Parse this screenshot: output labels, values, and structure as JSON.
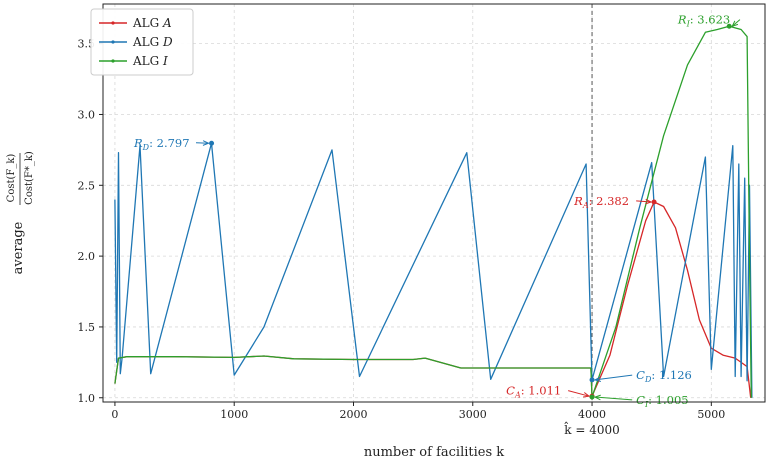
{
  "chart_data": {
    "type": "line",
    "xlabel": "number of facilities k",
    "ylabel_prefix": "average",
    "ylabel_fraction": {
      "numerator": "Cost(F_k)",
      "denominator": "Cost(F*_k)"
    },
    "xlim": [
      -100,
      5450
    ],
    "ylim": [
      0.97,
      3.78
    ],
    "x_ticks": [
      0,
      1000,
      2000,
      3000,
      4000,
      5000
    ],
    "x_tick_labels": [
      "0",
      "1000",
      "2000",
      "3000",
      "4000",
      "5000"
    ],
    "y_ticks": [
      1.0,
      1.5,
      2.0,
      2.5,
      3.0,
      3.5
    ],
    "y_tick_labels": [
      "1.0",
      "1.5",
      "2.0",
      "2.5",
      "3.0",
      "3.5"
    ],
    "grid": true,
    "legend_position": "top-left",
    "vline": {
      "x": 4000,
      "label": "k̂ = 4000"
    },
    "series": [
      {
        "name": "ALG A",
        "color": "#d62728",
        "points": [
          [
            0,
            1.1
          ],
          [
            30,
            1.28
          ],
          [
            100,
            1.29
          ],
          [
            500,
            1.29
          ],
          [
            1000,
            1.285
          ],
          [
            1250,
            1.295
          ],
          [
            1500,
            1.275
          ],
          [
            2000,
            1.27
          ],
          [
            2500,
            1.27
          ],
          [
            2600,
            1.28
          ],
          [
            2900,
            1.21
          ],
          [
            3500,
            1.21
          ],
          [
            3990,
            1.21
          ],
          [
            4000,
            1.011
          ],
          [
            4150,
            1.3
          ],
          [
            4300,
            1.8
          ],
          [
            4450,
            2.25
          ],
          [
            4520,
            2.382
          ],
          [
            4600,
            2.35
          ],
          [
            4700,
            2.2
          ],
          [
            4800,
            1.9
          ],
          [
            4900,
            1.55
          ],
          [
            5000,
            1.35
          ],
          [
            5100,
            1.3
          ],
          [
            5200,
            1.28
          ],
          [
            5300,
            1.22
          ],
          [
            5330,
            1.0
          ]
        ]
      },
      {
        "name": "ALG D",
        "color": "#1f77b4",
        "points": [
          [
            0,
            2.4
          ],
          [
            15,
            1.25
          ],
          [
            30,
            2.73
          ],
          [
            45,
            1.17
          ],
          [
            60,
            1.28
          ],
          [
            210,
            2.78
          ],
          [
            300,
            1.17
          ],
          [
            810,
            2.797
          ],
          [
            1000,
            1.16
          ],
          [
            1250,
            1.5
          ],
          [
            1820,
            2.75
          ],
          [
            2050,
            1.15
          ],
          [
            2950,
            2.73
          ],
          [
            3150,
            1.13
          ],
          [
            3950,
            2.65
          ],
          [
            4000,
            1.126
          ],
          [
            4500,
            2.66
          ],
          [
            4600,
            1.15
          ],
          [
            4950,
            2.7
          ],
          [
            5000,
            1.2
          ],
          [
            5180,
            2.78
          ],
          [
            5200,
            1.15
          ],
          [
            5230,
            2.65
          ],
          [
            5250,
            1.15
          ],
          [
            5280,
            2.55
          ],
          [
            5300,
            1.12
          ],
          [
            5320,
            2.5
          ],
          [
            5340,
            1.0
          ]
        ]
      },
      {
        "name": "ALG I",
        "color": "#2ca02c",
        "points": [
          [
            0,
            1.1
          ],
          [
            30,
            1.28
          ],
          [
            100,
            1.29
          ],
          [
            500,
            1.29
          ],
          [
            1000,
            1.285
          ],
          [
            1250,
            1.295
          ],
          [
            1500,
            1.275
          ],
          [
            2000,
            1.27
          ],
          [
            2500,
            1.27
          ],
          [
            2600,
            1.28
          ],
          [
            2900,
            1.21
          ],
          [
            3500,
            1.21
          ],
          [
            3990,
            1.21
          ],
          [
            4000,
            1.005
          ],
          [
            4200,
            1.5
          ],
          [
            4400,
            2.2
          ],
          [
            4600,
            2.85
          ],
          [
            4800,
            3.35
          ],
          [
            4950,
            3.58
          ],
          [
            5050,
            3.6
          ],
          [
            5150,
            3.623
          ],
          [
            5250,
            3.6
          ],
          [
            5300,
            3.55
          ],
          [
            5320,
            2.0
          ],
          [
            5335,
            1.0
          ]
        ]
      }
    ],
    "annotations": [
      {
        "label": "R_I: 3.623",
        "sub": "I",
        "value": "3.623",
        "series": "ALG I",
        "color": "#2ca02c",
        "x": 5150,
        "y": 3.623,
        "tx": 4720,
        "ty": 3.67,
        "anchor": "start"
      },
      {
        "label": "R_D: 2.797",
        "sub": "D",
        "value": "2.797",
        "series": "ALG D",
        "color": "#1f77b4",
        "x": 810,
        "y": 2.797,
        "tx": 160,
        "ty": 2.8,
        "anchor": "start"
      },
      {
        "label": "R_A: 2.382",
        "sub": "A",
        "value": "2.382",
        "series": "ALG A",
        "color": "#d62728",
        "x": 4520,
        "y": 2.382,
        "tx": 3850,
        "ty": 2.39,
        "anchor": "start"
      },
      {
        "label": "C_A: 1.011",
        "sub": "A",
        "value": "1.011",
        "series": "ALG A",
        "color": "#d62728",
        "x": 4000,
        "y": 1.011,
        "tx": 3280,
        "ty": 1.05,
        "anchor": "start"
      },
      {
        "label": "C_D: 1.126",
        "sub": "D",
        "value": "1.126",
        "series": "ALG D",
        "color": "#1f77b4",
        "x": 4000,
        "y": 1.126,
        "tx": 4370,
        "ty": 1.16,
        "anchor": "start"
      },
      {
        "label": "C_I: 1.005",
        "sub": "I",
        "value": "1.005",
        "series": "ALG I",
        "color": "#2ca02c",
        "x": 4000,
        "y": 1.005,
        "tx": 4370,
        "ty": 0.985,
        "anchor": "start"
      }
    ]
  }
}
